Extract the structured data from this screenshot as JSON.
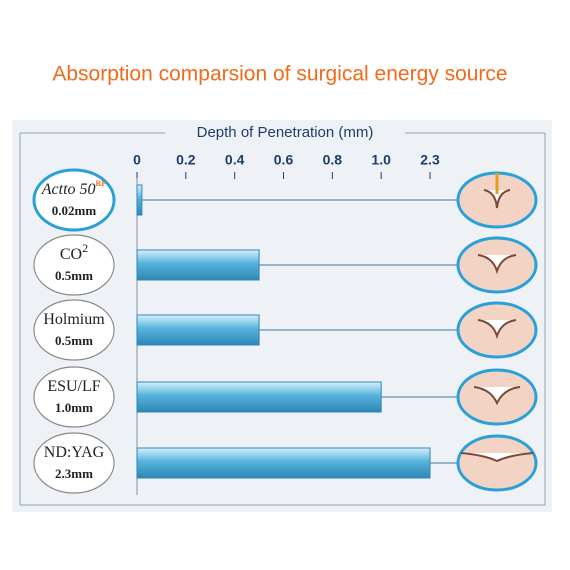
{
  "chart_data": {
    "type": "bar",
    "orientation": "horizontal",
    "title": "Absorption comparsion of surgical energy source",
    "x_label": "Depth of Penetration (mm)",
    "categories": [
      "Actto 50",
      "CO",
      "Holmium",
      "ESU/LF",
      "ND:YAG"
    ],
    "category_superscripts": [
      "RF",
      "2",
      null,
      null,
      null
    ],
    "values": [
      0.02,
      0.5,
      0.5,
      1.0,
      2.3
    ],
    "value_labels": [
      "0.02mm",
      "0.5mm",
      "0.5mm",
      "1.0mm",
      "2.3mm"
    ],
    "color": "#55b3dc",
    "xlim": [
      0,
      2.3
    ],
    "xticks": [
      0,
      0.2,
      0.4,
      0.6,
      0.8,
      {
        "value": 1,
        "label": "1.0"
      },
      2.3
    ]
  }
}
